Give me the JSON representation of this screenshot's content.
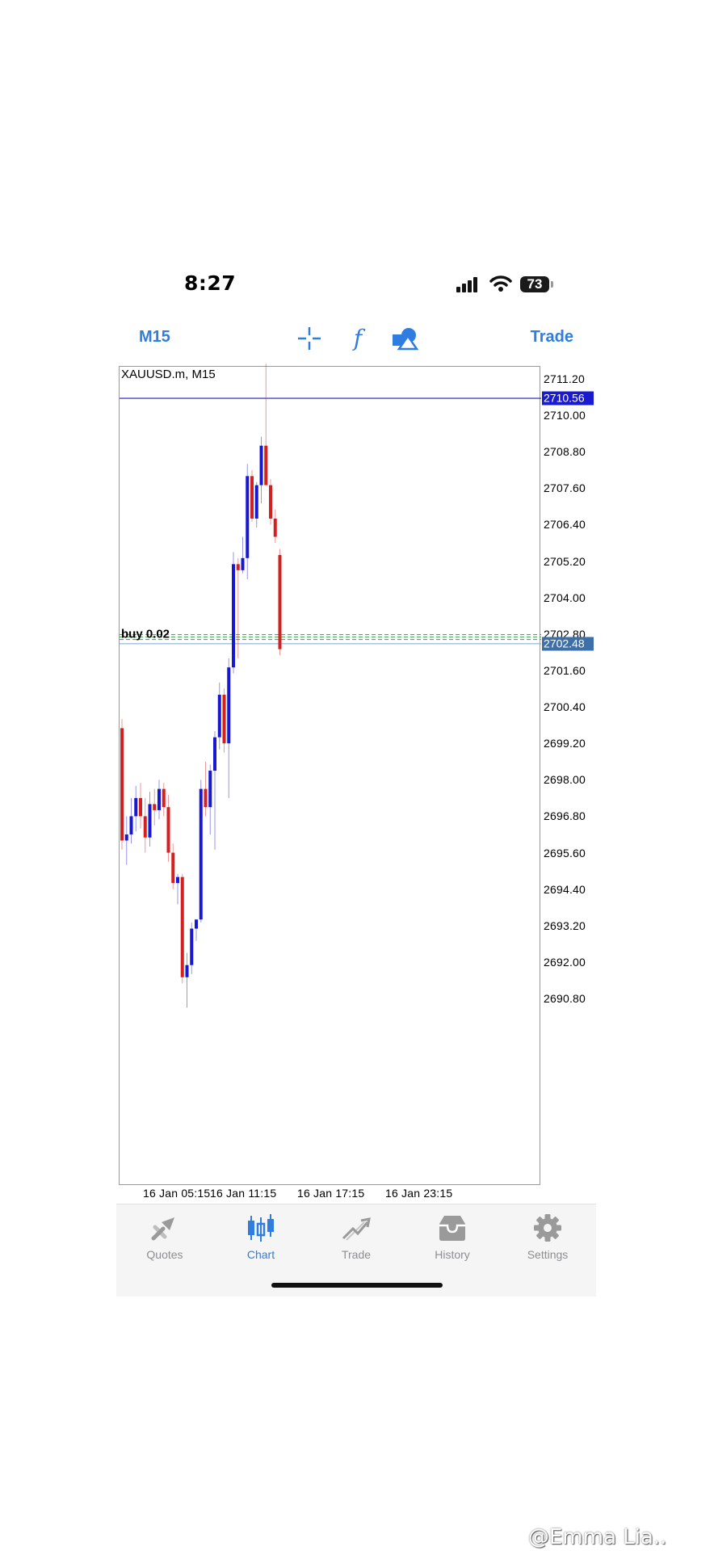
{
  "status_bar": {
    "time": "8:27",
    "battery": "73"
  },
  "toolbar": {
    "timeframe": "M15",
    "function_glyph": "f",
    "trade_label": "Trade",
    "icons": [
      "crosshair-icon",
      "function-icon",
      "objects-icon"
    ]
  },
  "chart": {
    "symbol_label": "XAUUSD.m, M15",
    "order_label": "buy 0.02",
    "ask_price": "2710.56",
    "bid_price": "2702.48",
    "price_axis": [
      "2711.20",
      "2710.00",
      "2708.80",
      "2707.60",
      "2706.40",
      "2705.20",
      "2704.00",
      "2702.80",
      "2701.60",
      "2700.40",
      "2699.20",
      "2698.00",
      "2696.80",
      "2695.60",
      "2694.40",
      "2693.20",
      "2692.00",
      "2690.80"
    ],
    "time_axis": [
      "16 Jan 05:15",
      "16 Jan 11:15",
      "16 Jan 17:15",
      "16 Jan 23:15"
    ],
    "colors": {
      "bull": "#1818d4",
      "bear": "#d42020",
      "ask_line": "#1a1ad0",
      "bid_tag": "#3d6fa8",
      "order_line": "#3aa14a"
    }
  },
  "chart_data": {
    "type": "candlestick",
    "title": "XAUUSD.m, M15",
    "ylim": [
      2689.7,
      2711.7
    ],
    "y_ticks": [
      2711.2,
      2710.0,
      2708.8,
      2707.6,
      2706.4,
      2705.2,
      2704.0,
      2702.8,
      2701.6,
      2700.4,
      2699.2,
      2698.0,
      2696.8,
      2695.6,
      2694.4,
      2693.2,
      2692.0,
      2690.8
    ],
    "x_ticks": [
      "16 Jan 05:15",
      "16 Jan 11:15",
      "16 Jan 17:15",
      "16 Jan 23:15"
    ],
    "ask_price": 2710.56,
    "bid_price": 2702.48,
    "order_price": 2702.7,
    "candles": [
      {
        "open": 2699.7,
        "high": 2700.0,
        "low": 2695.7,
        "close": 2696.0
      },
      {
        "open": 2696.0,
        "high": 2696.8,
        "low": 2695.2,
        "close": 2696.2
      },
      {
        "open": 2696.2,
        "high": 2697.4,
        "low": 2695.9,
        "close": 2696.8
      },
      {
        "open": 2696.8,
        "high": 2697.8,
        "low": 2696.3,
        "close": 2697.4
      },
      {
        "open": 2697.4,
        "high": 2697.9,
        "low": 2696.4,
        "close": 2696.8
      },
      {
        "open": 2696.8,
        "high": 2697.4,
        "low": 2695.6,
        "close": 2696.1
      },
      {
        "open": 2696.1,
        "high": 2697.6,
        "low": 2695.8,
        "close": 2697.2
      },
      {
        "open": 2697.2,
        "high": 2697.7,
        "low": 2696.5,
        "close": 2697.0
      },
      {
        "open": 2697.0,
        "high": 2698.0,
        "low": 2696.7,
        "close": 2697.7
      },
      {
        "open": 2697.7,
        "high": 2697.9,
        "low": 2696.8,
        "close": 2697.1
      },
      {
        "open": 2697.1,
        "high": 2697.5,
        "low": 2695.3,
        "close": 2695.6
      },
      {
        "open": 2695.6,
        "high": 2695.9,
        "low": 2694.4,
        "close": 2694.6
      },
      {
        "open": 2694.6,
        "high": 2694.9,
        "low": 2693.9,
        "close": 2694.8
      },
      {
        "open": 2694.8,
        "high": 2694.9,
        "low": 2691.3,
        "close": 2691.5
      },
      {
        "open": 2691.5,
        "high": 2692.3,
        "low": 2690.5,
        "close": 2691.9
      },
      {
        "open": 2691.9,
        "high": 2693.3,
        "low": 2691.6,
        "close": 2693.1
      },
      {
        "open": 2693.1,
        "high": 2693.4,
        "low": 2692.7,
        "close": 2693.4
      },
      {
        "open": 2693.4,
        "high": 2698.0,
        "low": 2693.3,
        "close": 2697.7
      },
      {
        "open": 2697.7,
        "high": 2698.6,
        "low": 2696.8,
        "close": 2697.1
      },
      {
        "open": 2697.1,
        "high": 2698.5,
        "low": 2696.2,
        "close": 2698.3
      },
      {
        "open": 2698.3,
        "high": 2699.6,
        "low": 2695.7,
        "close": 2699.4
      },
      {
        "open": 2699.4,
        "high": 2701.2,
        "low": 2699.0,
        "close": 2700.8
      },
      {
        "open": 2700.8,
        "high": 2701.0,
        "low": 2698.9,
        "close": 2699.2
      },
      {
        "open": 2699.2,
        "high": 2702.0,
        "low": 2697.4,
        "close": 2701.7
      },
      {
        "open": 2701.7,
        "high": 2705.5,
        "low": 2701.5,
        "close": 2705.1
      },
      {
        "open": 2705.1,
        "high": 2705.3,
        "low": 2702.0,
        "close": 2704.9
      },
      {
        "open": 2704.9,
        "high": 2706.0,
        "low": 2704.8,
        "close": 2705.3
      },
      {
        "open": 2705.3,
        "high": 2708.4,
        "low": 2704.6,
        "close": 2708.0
      },
      {
        "open": 2708.0,
        "high": 2708.2,
        "low": 2706.5,
        "close": 2706.6
      },
      {
        "open": 2706.6,
        "high": 2707.8,
        "low": 2706.3,
        "close": 2707.7
      },
      {
        "open": 2707.7,
        "high": 2709.3,
        "low": 2707.1,
        "close": 2709.0
      },
      {
        "open": 2709.0,
        "high": 2711.7,
        "low": 2707.8,
        "close": 2707.7
      },
      {
        "open": 2707.7,
        "high": 2707.9,
        "low": 2706.4,
        "close": 2706.6
      },
      {
        "open": 2706.6,
        "high": 2706.9,
        "low": 2705.8,
        "close": 2706.0
      },
      {
        "open": 2705.4,
        "high": 2705.6,
        "low": 2702.1,
        "close": 2702.3
      }
    ]
  },
  "tabbar": {
    "items": [
      {
        "label": "Quotes",
        "icon": "quotes-icon"
      },
      {
        "label": "Chart",
        "icon": "chart-icon"
      },
      {
        "label": "Trade",
        "icon": "trade-icon"
      },
      {
        "label": "History",
        "icon": "history-icon"
      },
      {
        "label": "Settings",
        "icon": "settings-icon"
      }
    ],
    "active": "Chart"
  },
  "watermark": "@Emma Lia.."
}
